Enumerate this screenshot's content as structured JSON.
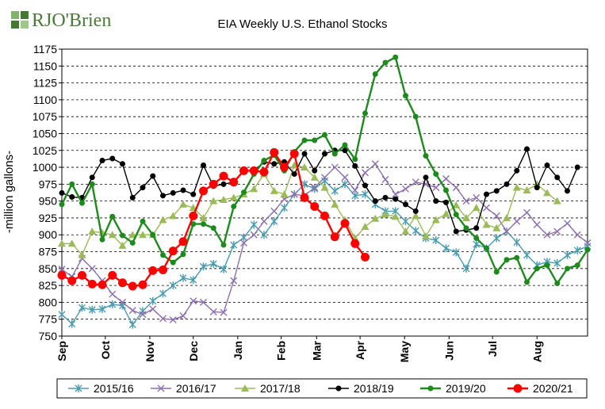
{
  "brand": {
    "name": "RJO'Brien",
    "colors": {
      "green": "#3f7a2e",
      "dark": "#2f5a22",
      "light": "#7fb46a"
    }
  },
  "chart_data": {
    "type": "line",
    "title": "EIA Weekly U.S. Ethanol Stocks",
    "xlabel": "",
    "ylabel": "-million gallons-",
    "ylim": [
      750,
      1175
    ],
    "yticks": [
      750,
      775,
      800,
      825,
      850,
      875,
      900,
      925,
      950,
      975,
      1000,
      1025,
      1050,
      1075,
      1100,
      1125,
      1150,
      1175
    ],
    "x_range_weeks": [
      0,
      52
    ],
    "months": [
      "Sep",
      "Oct",
      "Nov",
      "Dec",
      "Jan",
      "Feb",
      "Mar",
      "Apr",
      "May",
      "Jun",
      "Jul",
      "Aug"
    ],
    "grid": true,
    "legend_position": "bottom",
    "series": [
      {
        "name": "2015/16",
        "color": "#4a9bb0",
        "marker": "asterisk",
        "values": [
          782,
          768,
          792,
          789,
          790,
          797,
          795,
          767,
          787,
          802,
          813,
          825,
          836,
          833,
          853,
          857,
          849,
          885,
          896,
          915,
          900,
          920,
          940,
          960,
          975,
          968,
          980,
          965,
          975,
          958,
          960,
          945,
          935,
          935,
          920,
          906,
          895,
          892,
          880,
          874,
          850,
          886,
          880,
          895,
          905,
          889,
          870,
          855,
          860,
          858,
          870,
          877,
          883
        ]
      },
      {
        "name": "2016/17",
        "color": "#8c6fae",
        "marker": "x",
        "values": [
          849,
          838,
          865,
          850,
          832,
          812,
          800,
          788,
          782,
          790,
          776,
          774,
          780,
          802,
          800,
          786,
          785,
          832,
          888,
          900,
          920,
          935,
          953,
          960,
          958,
          970,
          985,
          1000,
          985,
          966,
          992,
          1005,
          982,
          960,
          968,
          978,
          975,
          970,
          983,
          970,
          950,
          955,
          940,
          928,
          905,
          920,
          933,
          915,
          900,
          905,
          917,
          900,
          888
        ]
      },
      {
        "name": "2017/18",
        "color": "#9bbb59",
        "marker": "triangle",
        "values": [
          887,
          887,
          870,
          905,
          903,
          900,
          884,
          900,
          900,
          900,
          922,
          928,
          945,
          940,
          925,
          950,
          952,
          955,
          960,
          968,
          990,
          965,
          960,
          1003,
          1000,
          985,
          970,
          945,
          922,
          895,
          912,
          924,
          930,
          927,
          905,
          928,
          898,
          922,
          931,
          944,
          925,
          940,
          915,
          910,
          925,
          970,
          966,
          975,
          962,
          950
        ]
      },
      {
        "name": "2018/19",
        "color": "#000000",
        "marker": "dot",
        "values": [
          962,
          956,
          955,
          985,
          1010,
          1013,
          1005,
          955,
          970,
          987,
          958,
          962,
          966,
          960,
          1003,
          972,
          975,
          978,
          995,
          995,
          1008,
          1005,
          1008,
          990,
          1020,
          995,
          1020,
          1025,
          1025,
          1002,
          973,
          950,
          955,
          953,
          945,
          935,
          985,
          950,
          948,
          905,
          907,
          910,
          960,
          965,
          975,
          995,
          1027,
          970,
          1003,
          985,
          965,
          1000
        ]
      },
      {
        "name": "2019/20",
        "color": "#1e8a1e",
        "marker": "dot",
        "values": [
          945,
          975,
          947,
          975,
          893,
          927,
          899,
          888,
          920,
          900,
          870,
          859,
          871,
          916,
          916,
          910,
          885,
          942,
          963,
          990,
          1010,
          1018,
          995,
          1023,
          1040,
          1040,
          1048,
          1020,
          1033,
          1012,
          1080,
          1138,
          1155,
          1163,
          1106,
          1075,
          1017,
          990,
          966,
          930,
          910,
          895,
          880,
          845,
          863,
          866,
          830,
          850,
          855,
          828,
          850,
          855,
          878
        ]
      },
      {
        "name": "2020/21",
        "color": "#ff0000",
        "marker": "dot",
        "values": [
          840,
          832,
          840,
          827,
          826,
          840,
          829,
          824,
          826,
          847,
          848,
          876,
          890,
          928,
          965,
          975,
          987,
          978,
          995,
          995,
          993,
          1022,
          1000,
          1020,
          955,
          942,
          928,
          897,
          917,
          887,
          867
        ]
      }
    ]
  }
}
